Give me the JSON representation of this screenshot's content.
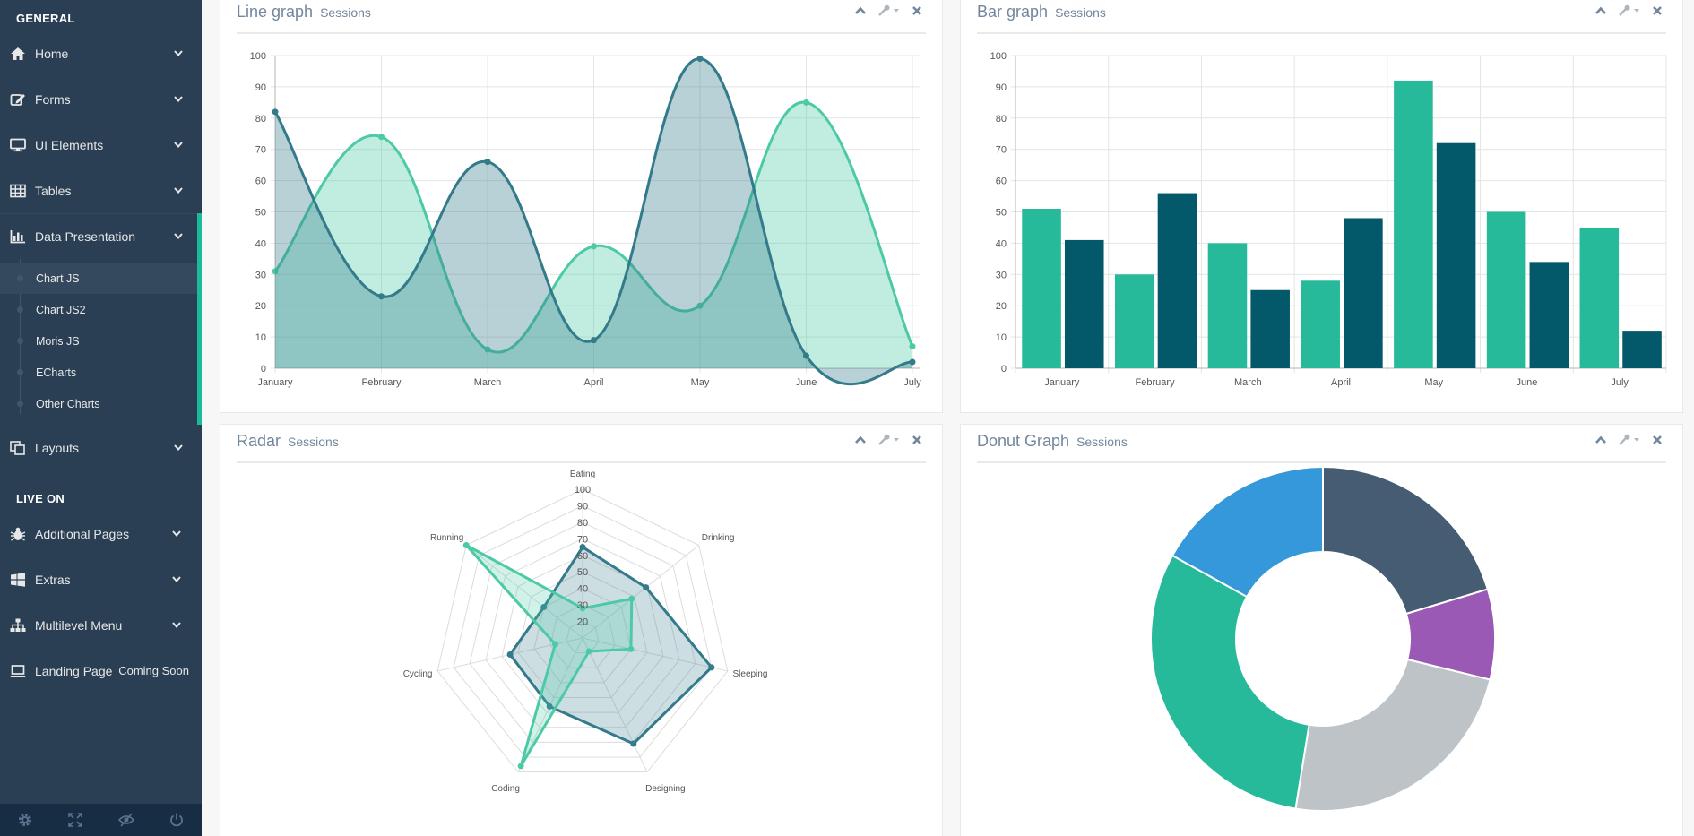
{
  "sidebar": {
    "section_general": "GENERAL",
    "section_live": "LIVE ON",
    "items": [
      {
        "label": "Home"
      },
      {
        "label": "Forms"
      },
      {
        "label": "UI Elements"
      },
      {
        "label": "Tables"
      },
      {
        "label": "Data Presentation"
      },
      {
        "label": "Layouts"
      },
      {
        "label": "Additional Pages"
      },
      {
        "label": "Extras"
      },
      {
        "label": "Multilevel Menu"
      },
      {
        "label": "Landing Page",
        "badge": "Coming Soon"
      }
    ],
    "subitems": [
      {
        "label": "Chart JS"
      },
      {
        "label": "Chart JS2"
      },
      {
        "label": "Moris JS"
      },
      {
        "label": "ECharts"
      },
      {
        "label": "Other Charts"
      }
    ]
  },
  "panels": {
    "line": {
      "title": "Line graph",
      "subtitle": "Sessions"
    },
    "bar": {
      "title": "Bar graph",
      "subtitle": "Sessions"
    },
    "radar": {
      "title": "Radar",
      "subtitle": "Sessions"
    },
    "donut": {
      "title": "Donut Graph",
      "subtitle": "Sessions"
    }
  },
  "colors": {
    "sidebar_bg": "#2a3f54",
    "accent": "#1abb9c",
    "series_light": "#26b99a",
    "series_dark": "#03586a"
  },
  "chart_data": [
    {
      "type": "line",
      "categories": [
        "January",
        "February",
        "March",
        "April",
        "May",
        "June",
        "July"
      ],
      "ylim": [
        0,
        100
      ],
      "yticks": [
        0,
        10,
        20,
        30,
        40,
        50,
        60,
        70,
        80,
        90,
        100
      ],
      "grid": true,
      "series": [
        {
          "values": [
            31,
            74,
            6,
            39,
            20,
            85,
            7
          ],
          "color": "#4ccaa6"
        },
        {
          "values": [
            82,
            23,
            66,
            9,
            99,
            4,
            2
          ],
          "color": "#337a8a"
        }
      ]
    },
    {
      "type": "bar",
      "categories": [
        "January",
        "February",
        "March",
        "April",
        "May",
        "June",
        "July"
      ],
      "ylim": [
        0,
        100
      ],
      "yticks": [
        0,
        10,
        20,
        30,
        40,
        50,
        60,
        70,
        80,
        90,
        100
      ],
      "grid": true,
      "series": [
        {
          "values": [
            51,
            30,
            40,
            28,
            92,
            50,
            45
          ],
          "color": "#26b99a"
        },
        {
          "values": [
            41,
            56,
            25,
            48,
            72,
            34,
            12
          ],
          "color": "#03586a"
        }
      ]
    },
    {
      "type": "radar",
      "axes": [
        "Eating",
        "Drinking",
        "Sleeping",
        "Designing",
        "Coding",
        "Cycling",
        "Running"
      ],
      "rticks": [
        20,
        30,
        40,
        50,
        60,
        70,
        80,
        90,
        100
      ],
      "rmin": 10,
      "rmax": 100,
      "series": [
        {
          "values": [
            65,
            59,
            90,
            81,
            56,
            55,
            40
          ],
          "color": "#337a8a"
        },
        {
          "values": [
            28,
            48,
            40,
            19,
            96,
            27,
            100
          ],
          "color": "#4ccaa6"
        }
      ]
    },
    {
      "type": "pie",
      "donut": true,
      "values": [
        120,
        50,
        140,
        180,
        100
      ],
      "colors": [
        "#455c73",
        "#9b59b6",
        "#bdc3c7",
        "#26b99a",
        "#3498db"
      ]
    }
  ]
}
